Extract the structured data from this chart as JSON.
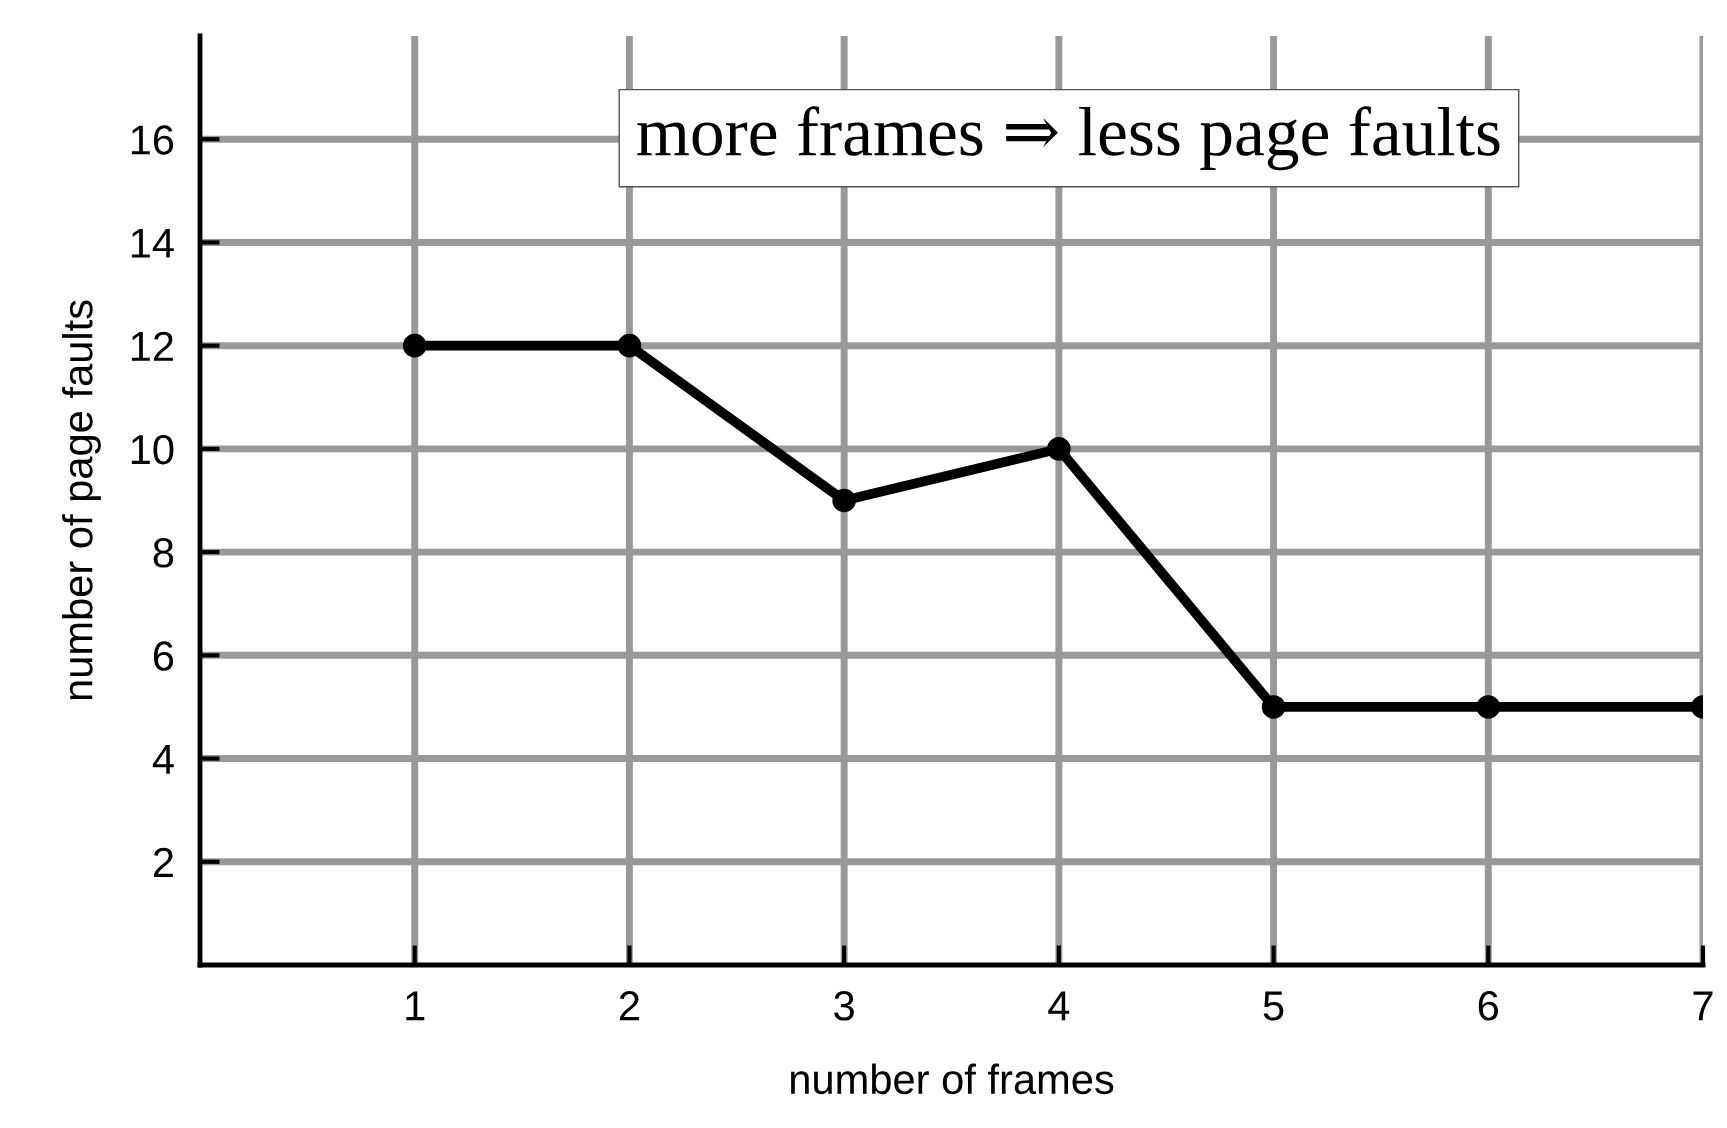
{
  "chart_data": {
    "type": "line",
    "xlabel": "number of frames",
    "ylabel": "number of page faults",
    "x": [
      1,
      2,
      3,
      4,
      5,
      6,
      7
    ],
    "series": [
      {
        "color": "#000000",
        "values": [
          12,
          12,
          9,
          10,
          5,
          5,
          5
        ]
      }
    ],
    "xlim": [
      0,
      7
    ],
    "ylim": [
      0,
      18
    ],
    "xticks": [
      1,
      2,
      3,
      4,
      5,
      6,
      7
    ],
    "yticks": [
      2,
      4,
      6,
      8,
      10,
      12,
      14,
      16
    ],
    "grid": true,
    "marker": "circle",
    "line_style": "solid",
    "legend": false,
    "annotations": [
      "more frames ⇒ less page faults"
    ]
  }
}
